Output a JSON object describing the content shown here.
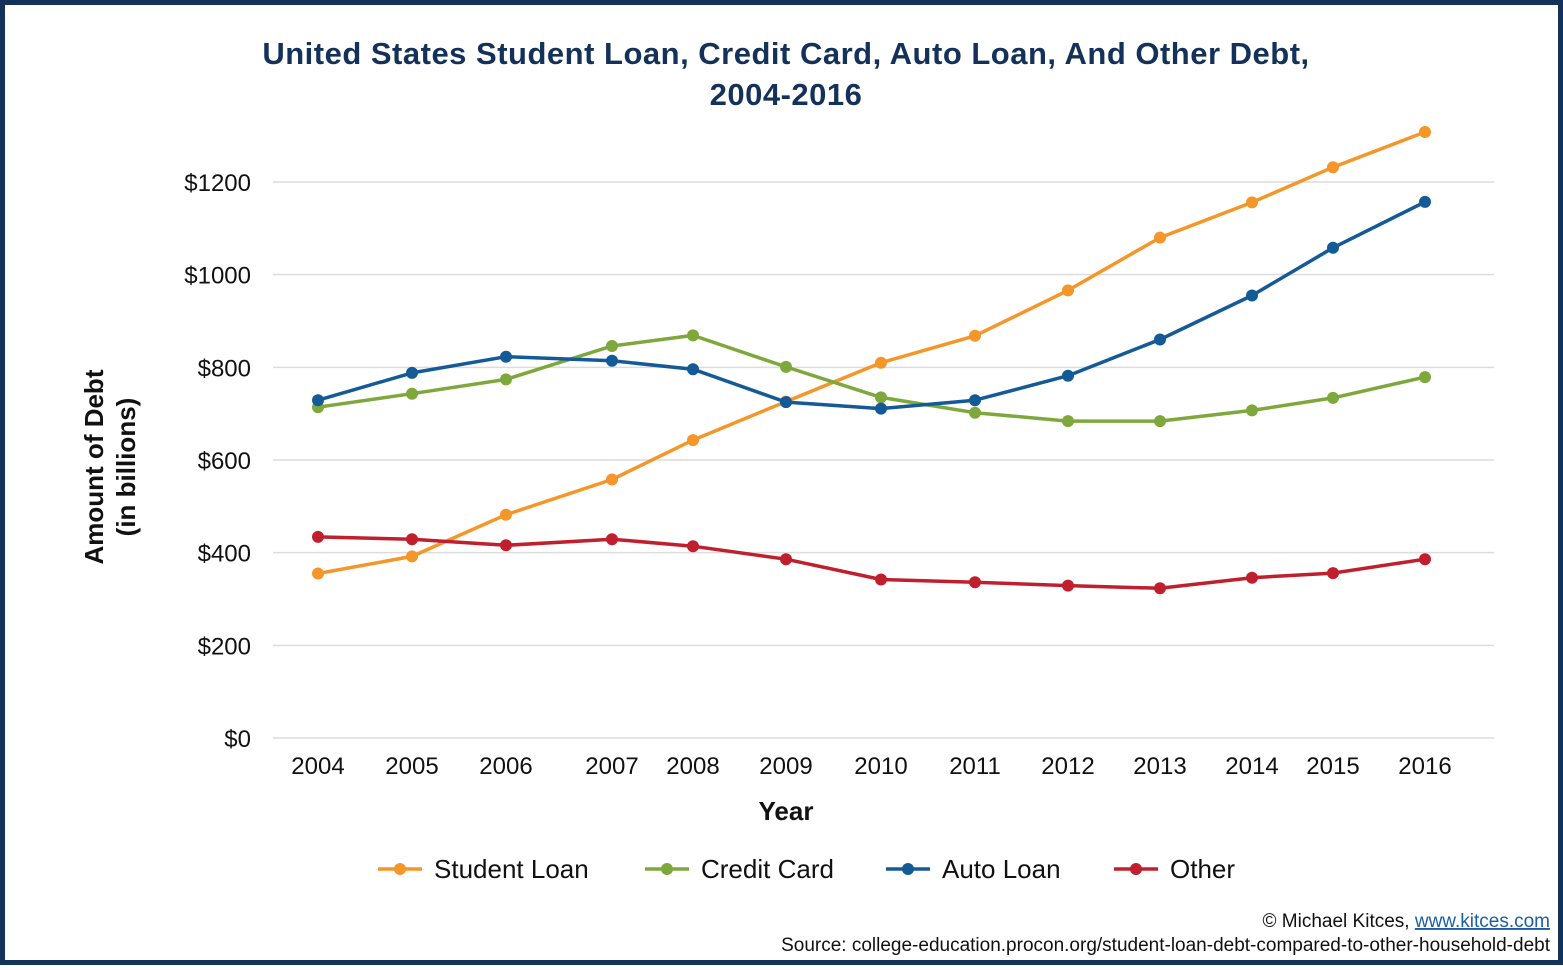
{
  "chart_data": {
    "type": "line",
    "title_line1": "United States Student Loan, Credit Card, Auto Loan, And Other Debt,",
    "title_line2": "2004-2016",
    "xlabel": "Year",
    "ylabel_line1": "Amount of Debt",
    "ylabel_line2": "(in billions)",
    "ylim": [
      0,
      1300
    ],
    "y_ticks": [
      "$0",
      "$200",
      "$400",
      "$600",
      "$800",
      "$1000",
      "$1200"
    ],
    "y_tick_values": [
      0,
      200,
      400,
      600,
      800,
      1000,
      1200
    ],
    "x": [
      "2004",
      "2005",
      "2006",
      "2007",
      "2008",
      "2009",
      "2010",
      "2011",
      "2012",
      "2013",
      "2014",
      "2015",
      "2016"
    ],
    "grid": true,
    "legend_position": "bottom",
    "series": [
      {
        "name": "Student Loan",
        "color": "#f5962a",
        "values": [
          355,
          392,
          482,
          558,
          643,
          726,
          810,
          868,
          966,
          1080,
          1156,
          1232,
          1308
        ]
      },
      {
        "name": "Credit Card",
        "color": "#7ea83c",
        "values": [
          714,
          743,
          774,
          846,
          869,
          801,
          735,
          702,
          684,
          684,
          707,
          734,
          779
        ]
      },
      {
        "name": "Auto Loan",
        "color": "#145a96",
        "values": [
          729,
          788,
          823,
          814,
          796,
          725,
          711,
          729,
          782,
          860,
          955,
          1058,
          1157
        ]
      },
      {
        "name": "Other",
        "color": "#c0202e",
        "values": [
          434,
          429,
          416,
          429,
          414,
          386,
          342,
          336,
          329,
          323,
          346,
          356,
          386
        ]
      }
    ]
  },
  "footer": {
    "copyright": "© Michael Kitces, ",
    "link": "www.kitces.com",
    "source": "Source: college-education.procon.org/student-loan-debt-compared-to-other-household-debt"
  }
}
